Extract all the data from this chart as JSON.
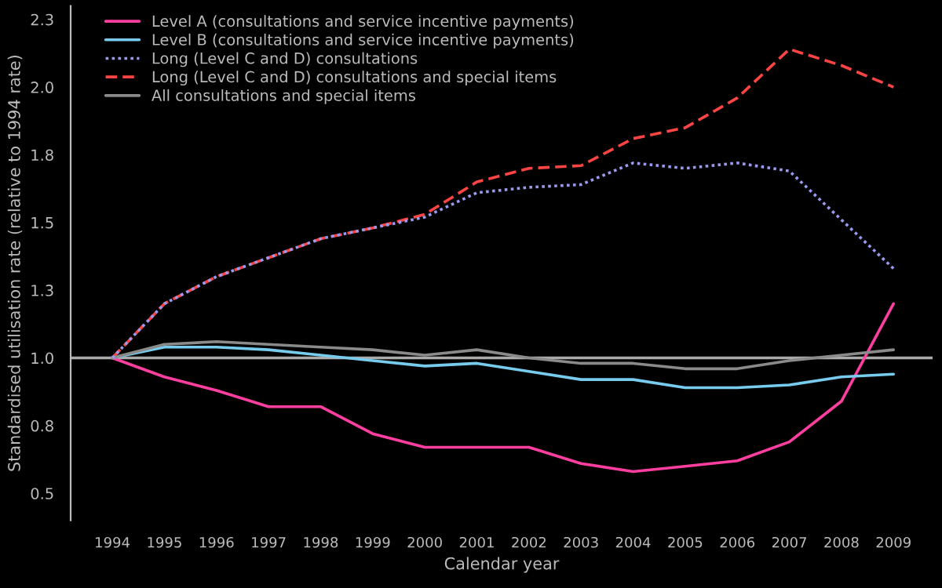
{
  "chart_data": {
    "type": "line",
    "xlabel": "Calendar year",
    "ylabel": "Standardised utilisation rate (relative to 1994 rate)",
    "x": [
      1994,
      1995,
      1996,
      1997,
      1998,
      1999,
      2000,
      2001,
      2002,
      2003,
      2004,
      2005,
      2006,
      2007,
      2008,
      2009
    ],
    "series": [
      {
        "name": "Level A (consultations and service incentive payments)",
        "color": "#ff3fa0",
        "line_style": "solid",
        "values": [
          1.0,
          0.93,
          0.88,
          0.82,
          0.82,
          0.72,
          0.67,
          0.67,
          0.67,
          0.61,
          0.58,
          0.6,
          0.62,
          0.69,
          0.84,
          1.2
        ]
      },
      {
        "name": "Level B (consultations and service incentive payments)",
        "color": "#77ccee",
        "line_style": "solid",
        "values": [
          1.0,
          1.04,
          1.04,
          1.03,
          1.01,
          0.99,
          0.97,
          0.98,
          0.95,
          0.92,
          0.92,
          0.89,
          0.89,
          0.9,
          0.93,
          0.94
        ]
      },
      {
        "name": "Long (Level C and D) consultations",
        "color": "#9999ee",
        "line_style": "dotted",
        "values": [
          1.0,
          1.2,
          1.3,
          1.37,
          1.44,
          1.48,
          1.52,
          1.61,
          1.63,
          1.64,
          1.72,
          1.7,
          1.72,
          1.69,
          1.51,
          1.33
        ]
      },
      {
        "name": "Long (Level C and D) consultations and special items",
        "color": "#ff4444",
        "line_style": "dashed",
        "values": [
          1.0,
          1.2,
          1.3,
          1.37,
          1.44,
          1.48,
          1.53,
          1.65,
          1.7,
          1.71,
          1.81,
          1.85,
          1.96,
          2.14,
          2.08,
          2.0
        ]
      },
      {
        "name": "All consultations and special items",
        "color": "#8a8a8a",
        "line_style": "solid",
        "values": [
          1.0,
          1.05,
          1.06,
          1.05,
          1.04,
          1.03,
          1.01,
          1.03,
          1.0,
          0.98,
          0.98,
          0.96,
          0.96,
          0.99,
          1.01,
          1.03
        ]
      }
    ],
    "xlim": [
      1993.2,
      2009.75
    ],
    "ylim": [
      0.4,
      2.3
    ],
    "xticks": [
      1994,
      1995,
      1996,
      1997,
      1998,
      1999,
      2000,
      2001,
      2002,
      2003,
      2004,
      2005,
      2006,
      2007,
      2008,
      2009
    ],
    "yticks": [
      0.5,
      {
        "value": 0.75,
        "label": "0.8"
      },
      {
        "value": 1,
        "label": "1.0"
      },
      {
        "value": 1.25,
        "label": "1.3"
      },
      1.5,
      {
        "value": 1.75,
        "label": "1.8"
      },
      {
        "value": 2,
        "label": "2.0"
      },
      {
        "value": 2.25,
        "label": "2.3"
      }
    ],
    "ref_lines": [
      {
        "axis": "y",
        "value": 1.0,
        "label": null,
        "color": "#aaaaaa"
      }
    ],
    "legend": "top left",
    "grid": false,
    "marker": "none"
  }
}
